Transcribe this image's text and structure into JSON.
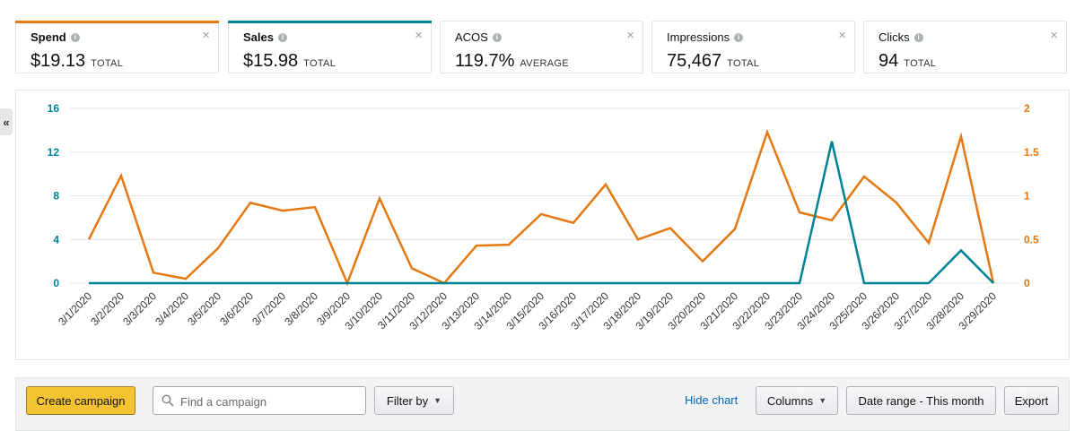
{
  "metrics": [
    {
      "label": "Spend",
      "value": "$19.13",
      "suffix": "TOTAL",
      "bar_color": "#e47911",
      "bold": true
    },
    {
      "label": "Sales",
      "value": "$15.98",
      "suffix": "TOTAL",
      "bar_color": "#008296",
      "bold": true
    },
    {
      "label": "ACOS",
      "value": "119.7%",
      "suffix": "AVERAGE",
      "bar_color": "",
      "bold": false
    },
    {
      "label": "Impressions",
      "value": "75,467",
      "suffix": "TOTAL",
      "bar_color": "",
      "bold": false
    },
    {
      "label": "Clicks",
      "value": "94",
      "suffix": "TOTAL",
      "bar_color": "",
      "bold": false
    }
  ],
  "icons": {
    "info": "info-icon",
    "close": "close-icon",
    "collapse": "double-chevron-left-icon",
    "search": "search-icon"
  },
  "collapse_glyph": "«",
  "close_glyph": "×",
  "info_glyph": "i",
  "chart_data": {
    "type": "line",
    "x": [
      "3/1/2020",
      "3/2/2020",
      "3/3/2020",
      "3/4/2020",
      "3/5/2020",
      "3/6/2020",
      "3/7/2020",
      "3/8/2020",
      "3/9/2020",
      "3/10/2020",
      "3/11/2020",
      "3/12/2020",
      "3/13/2020",
      "3/14/2020",
      "3/15/2020",
      "3/16/2020",
      "3/17/2020",
      "3/18/2020",
      "3/19/2020",
      "3/20/2020",
      "3/21/2020",
      "3/22/2020",
      "3/23/2020",
      "3/24/2020",
      "3/25/2020",
      "3/26/2020",
      "3/27/2020",
      "3/28/2020",
      "3/29/2020"
    ],
    "y_left": {
      "ticks": [
        "0",
        "4",
        "8",
        "12",
        "16"
      ],
      "range": [
        0,
        16
      ],
      "color": "#008296"
    },
    "y_right": {
      "ticks": [
        "0",
        "0.5",
        "1",
        "1.5",
        "2"
      ],
      "range": [
        0,
        2
      ],
      "color": "#e47911"
    },
    "grid": true,
    "series": [
      {
        "name": "Spend",
        "axis": "right",
        "color": "#e47911",
        "values": [
          0.5,
          1.23,
          0.12,
          0.05,
          0.4,
          0.92,
          0.83,
          0.87,
          0.0,
          0.97,
          0.17,
          0.0,
          0.43,
          0.44,
          0.79,
          0.69,
          1.13,
          0.5,
          0.63,
          0.25,
          0.62,
          1.73,
          0.81,
          0.72,
          1.22,
          0.92,
          0.46,
          1.68,
          0.0
        ]
      },
      {
        "name": "Sales",
        "axis": "left",
        "color": "#008296",
        "values": [
          0,
          0,
          0,
          0,
          0,
          0,
          0,
          0,
          0,
          0,
          0,
          0,
          0,
          0,
          0,
          0,
          0,
          0,
          0,
          0,
          0,
          0,
          0,
          12.98,
          0,
          0,
          0,
          3.0,
          0
        ]
      }
    ]
  },
  "toolbar": {
    "create_label": "Create campaign",
    "search_placeholder": "Find a campaign",
    "filter_label": "Filter by",
    "hide_chart_label": "Hide chart",
    "columns_label": "Columns",
    "date_range_label": "Date range - This month",
    "export_label": "Export",
    "caret": "▼"
  }
}
